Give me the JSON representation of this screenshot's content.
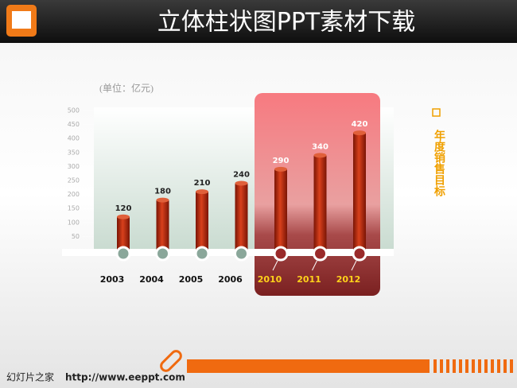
{
  "chart_data": {
    "type": "bar",
    "title": "立体柱状图PPT素材下载",
    "unit_label": "(单位：亿元)",
    "legend_label": "年度销售目标",
    "categories": [
      "2003",
      "2004",
      "2005",
      "2006",
      "2010",
      "2011",
      "2012"
    ],
    "values": [
      120,
      180,
      210,
      240,
      290,
      340,
      420
    ],
    "highlight": [
      false,
      false,
      false,
      false,
      true,
      true,
      true
    ],
    "color": "#b3250b",
    "highlight_label_color": "#ffd21a",
    "ylim": [
      0,
      500
    ],
    "yticks": [
      50,
      100,
      150,
      200,
      250,
      300,
      350,
      400,
      450,
      500
    ]
  },
  "footer": {
    "site": "幻灯片之家",
    "url": "http://www.eeppt.com"
  }
}
